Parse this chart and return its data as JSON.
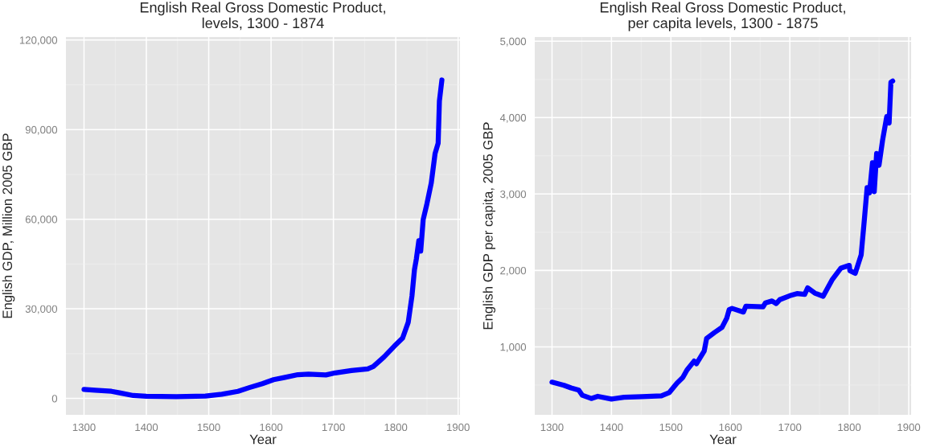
{
  "chart_data": [
    {
      "type": "line",
      "title": "English Real Gross Domestic Product,\nlevels, 1300 - 1874",
      "xlabel": "Year",
      "ylabel": "English GDP, Million 2005 GBP",
      "x": [
        1300,
        1318,
        1344,
        1357,
        1379,
        1400,
        1448,
        1495,
        1521,
        1547,
        1565,
        1586,
        1604,
        1621,
        1643,
        1660,
        1688,
        1703,
        1729,
        1755,
        1764,
        1781,
        1798,
        1811,
        1820,
        1826,
        1830,
        1833,
        1837,
        1840,
        1844,
        1850,
        1857,
        1863,
        1868,
        1870,
        1874
      ],
      "series": [
        {
          "color": "#0000ff",
          "values": [
            3000,
            2730,
            2380,
            1850,
            970,
            700,
            620,
            790,
            1410,
            2380,
            3610,
            4940,
            6260,
            6970,
            7940,
            8110,
            7850,
            8550,
            9350,
            9880,
            10670,
            13840,
            17550,
            20190,
            25480,
            34300,
            43110,
            46640,
            52810,
            49290,
            59870,
            65160,
            72210,
            81910,
            85440,
            99550,
            106600
          ]
        }
      ],
      "xlim": [
        1271,
        1903
      ],
      "xticks": [
        1300,
        1400,
        1500,
        1600,
        1700,
        1800,
        1900
      ],
      "ylim": [
        -5500,
        121000
      ],
      "yticks": [
        0,
        {
          "value": 30000,
          "label": "30,000"
        },
        {
          "value": 60000,
          "label": "60,000"
        },
        {
          "value": 90000,
          "label": "90,000"
        },
        {
          "value": 120000,
          "label": "120,000"
        }
      ],
      "grid": true,
      "legend": false,
      "marker": "none",
      "line_style": "solid"
    },
    {
      "type": "line",
      "title": "English Real Gross Domestic Product,\nper capita levels, 1300 - 1875",
      "xlabel": "Year",
      "ylabel": "English GDP per capita, 2005 GBP",
      "x": [
        1300,
        1320,
        1332,
        1345,
        1351,
        1366,
        1377,
        1400,
        1421,
        1451,
        1484,
        1497,
        1510,
        1520,
        1527,
        1539,
        1543,
        1556,
        1560,
        1573,
        1586,
        1594,
        1598,
        1603,
        1622,
        1626,
        1655,
        1659,
        1670,
        1677,
        1683,
        1700,
        1712,
        1725,
        1730,
        1742,
        1756,
        1771,
        1786,
        1800,
        1801,
        1810,
        1820,
        1825,
        1830,
        1834,
        1839,
        1842,
        1846,
        1850,
        1856,
        1863,
        1867,
        1870,
        1873
      ],
      "series": [
        {
          "color": "#0000ff",
          "values": [
            538,
            497,
            462,
            434,
            366,
            324,
            352,
            317,
            341,
            348,
            359,
            400,
            524,
            600,
            697,
            814,
            779,
            945,
            1110,
            1186,
            1255,
            1376,
            1486,
            1503,
            1455,
            1531,
            1524,
            1576,
            1600,
            1566,
            1617,
            1669,
            1697,
            1686,
            1772,
            1703,
            1662,
            1876,
            2031,
            2066,
            1997,
            1962,
            2203,
            2634,
            3083,
            3014,
            3410,
            3031,
            3531,
            3376,
            3703,
            4014,
            3928,
            4462,
            4479
          ]
        }
      ],
      "xlim": [
        1271,
        1904
      ],
      "xticks": [
        1300,
        1400,
        1500,
        1600,
        1700,
        1800,
        1900
      ],
      "ylim": [
        110,
        5055
      ],
      "yticks": [
        {
          "value": 1000,
          "label": "1,000"
        },
        {
          "value": 2000,
          "label": "2,000"
        },
        {
          "value": 3000,
          "label": "3,000"
        },
        {
          "value": 4000,
          "label": "4,000"
        },
        {
          "value": 5000,
          "label": "5,000"
        }
      ],
      "grid": true,
      "legend": false,
      "marker": "none",
      "line_style": "solid"
    }
  ]
}
